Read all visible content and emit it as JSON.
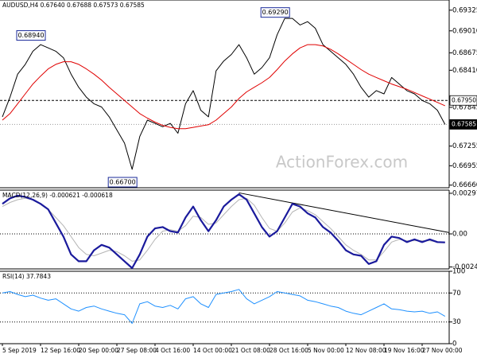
{
  "chart_data": [
    {
      "type": "line",
      "title": "AUDUSD,H4  0.67640 0.67688 0.67573 0.67585",
      "watermark": "ActionForex.com",
      "series": [
        {
          "color": "#000000",
          "values": [
            0.677,
            0.68,
            0.6835,
            0.685,
            0.687,
            0.688,
            0.6875,
            0.687,
            0.686,
            0.6835,
            0.6815,
            0.68,
            0.679,
            0.6785,
            0.677,
            0.675,
            0.673,
            0.669,
            0.674,
            0.6765,
            0.676,
            0.6755,
            0.676,
            0.6745,
            0.679,
            0.681,
            0.678,
            0.677,
            0.684,
            0.6855,
            0.6865,
            0.688,
            0.686,
            0.6835,
            0.6845,
            0.686,
            0.6895,
            0.692,
            0.692,
            0.691,
            0.6915,
            0.6905,
            0.688,
            0.687,
            0.686,
            0.685,
            0.6835,
            0.6815,
            0.68,
            0.681,
            0.6805,
            0.683,
            0.682,
            0.681,
            0.6805,
            0.6795,
            0.679,
            0.678,
            0.67585
          ]
        },
        {
          "color": "#e00000",
          "values": [
            0.6765,
            0.6775,
            0.679,
            0.6805,
            0.682,
            0.6832,
            0.6843,
            0.685,
            0.6854,
            0.6854,
            0.685,
            0.6843,
            0.6835,
            0.6826,
            0.6815,
            0.6805,
            0.6795,
            0.6785,
            0.6775,
            0.6768,
            0.6762,
            0.6757,
            0.6754,
            0.6752,
            0.6752,
            0.6754,
            0.6756,
            0.6758,
            0.6765,
            0.6775,
            0.6785,
            0.6798,
            0.6808,
            0.6815,
            0.6822,
            0.683,
            0.6842,
            0.6855,
            0.6866,
            0.6875,
            0.688,
            0.688,
            0.6878,
            0.6873,
            0.6866,
            0.6858,
            0.685,
            0.6842,
            0.6835,
            0.683,
            0.6825,
            0.682,
            0.6816,
            0.6812,
            0.6807,
            0.6802,
            0.6797,
            0.6792,
            0.6787
          ]
        }
      ],
      "high_low_marks": {
        "x": [
          5,
          37,
          17
        ],
        "values": [
          0.6894,
          0.6929,
          0.667
        ],
        "value_labels": [
          "0.68940",
          "0.69290",
          "0.66700"
        ]
      },
      "levels": {
        "values": [
          0.6795,
          0.67585
        ],
        "value_labels": [
          "0.67950",
          "0.67585"
        ]
      },
      "ylim": [
        0.6662,
        0.6948
      ],
      "yticks": [
        {
          "value": 0.69325,
          "label": "0.69325"
        },
        {
          "value": 0.6901,
          "label": "0.69010"
        },
        {
          "value": 0.68675,
          "label": "0.68675"
        },
        {
          "value": 0.6841,
          "label": "0.68410"
        },
        {
          "value": 0.67845,
          "label": "0.67845"
        },
        {
          "value": 0.67255,
          "label": "0.67255"
        },
        {
          "value": 0.66955,
          "label": "0.66955"
        },
        {
          "value": 0.6666,
          "label": "0.66660"
        }
      ]
    },
    {
      "type": "macd",
      "title": "MACD(12,26,9) -0.000621 -0.000618",
      "series": [
        {
          "color": "#1a1a9c",
          "values": [
            0.0022,
            0.0026,
            0.0028,
            0.0027,
            0.0025,
            0.0022,
            0.0018,
            0.0008,
            -0.0002,
            -0.0015,
            -0.002,
            -0.002,
            -0.0012,
            -0.0008,
            -0.001,
            -0.0015,
            -0.002,
            -0.0025,
            -0.0015,
            -0.0002,
            0.0004,
            0.0005,
            0.0002,
            0.0001,
            0.0012,
            0.002,
            0.001,
            0.0002,
            0.001,
            0.002,
            0.0025,
            0.0029,
            0.0025,
            0.0015,
            0.0005,
            -0.0002,
            0.0002,
            0.0012,
            0.0022,
            0.002,
            0.0015,
            0.0012,
            0.0005,
            0.0001,
            -0.0005,
            -0.0012,
            -0.0015,
            -0.0016,
            -0.0022,
            -0.002,
            -0.0008,
            -0.0002,
            -0.0003,
            -0.0006,
            -0.0004,
            -0.0006,
            -0.0004,
            -0.0006,
            -0.000621
          ]
        },
        {
          "color": "#b4b4b4",
          "values": [
            0.002,
            0.0023,
            0.0025,
            0.0026,
            0.0025,
            0.0022,
            0.0018,
            0.0012,
            0.0006,
            -0.0002,
            -0.001,
            -0.0015,
            -0.0016,
            -0.0014,
            -0.0012,
            -0.0013,
            -0.0016,
            -0.002,
            -0.0019,
            -0.0012,
            -0.0004,
            0.0002,
            0.0003,
            0.0002,
            0.0006,
            0.0013,
            0.0012,
            0.0007,
            0.0008,
            0.0014,
            0.002,
            0.0025,
            0.0026,
            0.0021,
            0.0012,
            0.0004,
            0.0002,
            0.0008,
            0.0016,
            0.0019,
            0.0017,
            0.0014,
            0.0009,
            0.0004,
            -0.0002,
            -0.0008,
            -0.0012,
            -0.0015,
            -0.0019,
            -0.0019,
            -0.0013,
            -0.0006,
            -0.0004,
            -0.0005,
            -0.0005,
            -0.0005,
            -0.0005,
            -0.0006,
            -0.000618
          ]
        }
      ],
      "trendline": {
        "x": [
          31,
          58.5
        ],
        "values": [
          0.003,
          0.0001
        ]
      },
      "levels": {
        "values": [
          0
        ]
      },
      "ylim": [
        -0.00256,
        0.0032
      ],
      "yticks": [
        {
          "value": 0.00297,
          "label": "0.00297"
        },
        {
          "value": 0,
          "label": "0.00"
        },
        {
          "value": -0.00242,
          "label": "-0.00242"
        }
      ]
    },
    {
      "type": "rsi",
      "title": "RSI(14) 37.7843",
      "categories": [
        "5 Sep 2019",
        null,
        null,
        null,
        null,
        "12 Sep 16:00",
        null,
        null,
        null,
        null,
        "20 Sep 00:00",
        null,
        null,
        null,
        null,
        "27 Sep 08:00",
        null,
        null,
        null,
        null,
        "4 Oct 16:00",
        null,
        null,
        null,
        null,
        "14 Oct 00:00",
        null,
        null,
        null,
        null,
        "21 Oct 08:00",
        null,
        null,
        null,
        null,
        "28 Oct 16:00",
        null,
        null,
        null,
        null,
        "5 Nov 00:00",
        null,
        null,
        null,
        null,
        "12 Nov 08:00",
        null,
        null,
        null,
        null,
        "19 Nov 16:00",
        null,
        null,
        null,
        null,
        "27 Nov 00:00",
        null,
        null,
        null
      ],
      "series": [
        {
          "color": "#1e90ff",
          "values": [
            70,
            72,
            68,
            65,
            67,
            63,
            60,
            62,
            55,
            48,
            45,
            50,
            52,
            48,
            45,
            42,
            40,
            28,
            55,
            58,
            52,
            50,
            53,
            48,
            62,
            65,
            55,
            50,
            68,
            70,
            72,
            75,
            62,
            55,
            60,
            65,
            72,
            70,
            68,
            66,
            60,
            58,
            55,
            52,
            50,
            45,
            42,
            40,
            45,
            50,
            55,
            48,
            47,
            45,
            44,
            45,
            42,
            44,
            37.7843
          ]
        }
      ],
      "levels": {
        "values": [
          70,
          30
        ]
      },
      "ylim": [
        0,
        100
      ],
      "yticks": [
        100,
        70,
        30,
        0
      ]
    }
  ]
}
